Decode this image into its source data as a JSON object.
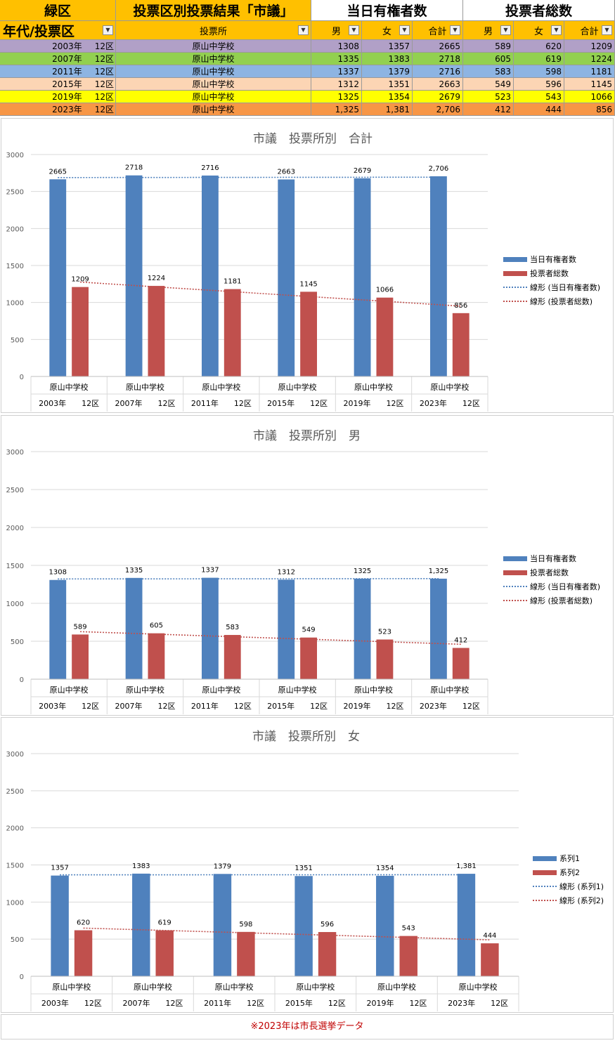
{
  "table": {
    "header_row1": {
      "ward": "緑区",
      "title": "投票区別投票結果「市議」",
      "eligible_group": "当日有権者数",
      "voters_group": "投票者総数"
    },
    "header_row2": {
      "period_district": "年代/投票区",
      "polling_place": "投票所",
      "male": "男",
      "female": "女",
      "total": "合計",
      "male2": "男",
      "female2": "女",
      "total2": "合計"
    },
    "rows": [
      {
        "year": "2003年",
        "district": "12区",
        "place": "原山中学校",
        "e_m": "1308",
        "e_f": "1357",
        "e_t": "2665",
        "v_m": "589",
        "v_f": "620",
        "v_t": "1209",
        "color": "#b1a0c7"
      },
      {
        "year": "2007年",
        "district": "12区",
        "place": "原山中学校",
        "e_m": "1335",
        "e_f": "1383",
        "e_t": "2718",
        "v_m": "605",
        "v_f": "619",
        "v_t": "1224",
        "color": "#92d050"
      },
      {
        "year": "2011年",
        "district": "12区",
        "place": "原山中学校",
        "e_m": "1337",
        "e_f": "1379",
        "e_t": "2716",
        "v_m": "583",
        "v_f": "598",
        "v_t": "1181",
        "color": "#8db4e2"
      },
      {
        "year": "2015年",
        "district": "12区",
        "place": "原山中学校",
        "e_m": "1312",
        "e_f": "1351",
        "e_t": "2663",
        "v_m": "549",
        "v_f": "596",
        "v_t": "1145",
        "color": "#fcd5b4"
      },
      {
        "year": "2019年",
        "district": "12区",
        "place": "原山中学校",
        "e_m": "1325",
        "e_f": "1354",
        "e_t": "2679",
        "v_m": "523",
        "v_f": "543",
        "v_t": "1066",
        "color": "#ffff00"
      },
      {
        "year": "2023年",
        "district": "12区",
        "place": "原山中学校",
        "e_m": "1,325",
        "e_f": "1,381",
        "e_t": "2,706",
        "v_m": "412",
        "v_f": "444",
        "v_t": "856",
        "color": "#f79646"
      }
    ]
  },
  "colors": {
    "header_orange": "#ffc000",
    "series_blue": "#4f81bd",
    "series_red": "#c0504d",
    "footnote_red": "#c00000"
  },
  "chart_data": [
    {
      "type": "bar",
      "title": "市議　投票所別　合計",
      "categories": [
        "原山中学校",
        "原山中学校",
        "原山中学校",
        "原山中学校",
        "原山中学校",
        "原山中学校"
      ],
      "category_groups": [
        "2003年　　12区",
        "2007年　　12区",
        "2011年　　12区",
        "2015年　　12区",
        "2019年　　12区",
        "2023年　　12区"
      ],
      "series": [
        {
          "name": "当日有権者数",
          "values": [
            2665,
            2718,
            2716,
            2663,
            2679,
            2706
          ],
          "labels": [
            "2665",
            "2718",
            "2716",
            "2663",
            "2679",
            "2,706"
          ]
        },
        {
          "name": "投票者総数",
          "values": [
            1209,
            1224,
            1181,
            1145,
            1066,
            856
          ],
          "labels": [
            "1209",
            "1224",
            "1181",
            "1145",
            "1066",
            "856"
          ]
        }
      ],
      "trendlines": [
        "線形 (当日有権者数)",
        "線形 (投票者総数)"
      ],
      "yticks": [
        "0",
        "500",
        "1000",
        "1500",
        "2000",
        "2500",
        "3000"
      ],
      "ylim": [
        0,
        3000
      ],
      "grid": true,
      "legend": "right"
    },
    {
      "type": "bar",
      "title": "市議　投票所別　男",
      "categories": [
        "原山中学校",
        "原山中学校",
        "原山中学校",
        "原山中学校",
        "原山中学校",
        "原山中学校"
      ],
      "category_groups": [
        "2003年　　12区",
        "2007年　　12区",
        "2011年　　12区",
        "2015年　　12区",
        "2019年　　12区",
        "2023年　　12区"
      ],
      "series": [
        {
          "name": "当日有権者数",
          "values": [
            1308,
            1335,
            1337,
            1312,
            1325,
            1325
          ],
          "labels": [
            "1308",
            "1335",
            "1337",
            "1312",
            "1325",
            "1,325"
          ]
        },
        {
          "name": "投票者総数",
          "values": [
            589,
            605,
            583,
            549,
            523,
            412
          ],
          "labels": [
            "589",
            "605",
            "583",
            "549",
            "523",
            "412"
          ]
        }
      ],
      "trendlines": [
        "線形 (当日有権者数)",
        "線形 (投票者総数)"
      ],
      "yticks": [
        "0",
        "500",
        "1000",
        "1500",
        "2000",
        "2500",
        "3000"
      ],
      "ylim": [
        0,
        3000
      ],
      "grid": true,
      "legend": "right"
    },
    {
      "type": "bar",
      "title": "市議　投票所別　女",
      "categories": [
        "原山中学校",
        "原山中学校",
        "原山中学校",
        "原山中学校",
        "原山中学校",
        "原山中学校"
      ],
      "category_groups": [
        "2003年　　12区",
        "2007年　　12区",
        "2011年　　12区",
        "2015年　　12区",
        "2019年　　12区",
        "2023年　　12区"
      ],
      "series": [
        {
          "name": "系列1",
          "values": [
            1357,
            1383,
            1379,
            1351,
            1354,
            1381
          ],
          "labels": [
            "1357",
            "1383",
            "1379",
            "1351",
            "1354",
            "1,381"
          ]
        },
        {
          "name": "系列2",
          "values": [
            620,
            619,
            598,
            596,
            543,
            444
          ],
          "labels": [
            "620",
            "619",
            "598",
            "596",
            "543",
            "444"
          ]
        }
      ],
      "trendlines": [
        "線形 (系列1)",
        "線形 (系列2)"
      ],
      "yticks": [
        "0",
        "500",
        "1000",
        "1500",
        "2000",
        "2500",
        "3000"
      ],
      "ylim": [
        0,
        3000
      ],
      "grid": true,
      "legend": "right"
    }
  ],
  "footnote": "※2023年は市長選挙データ"
}
